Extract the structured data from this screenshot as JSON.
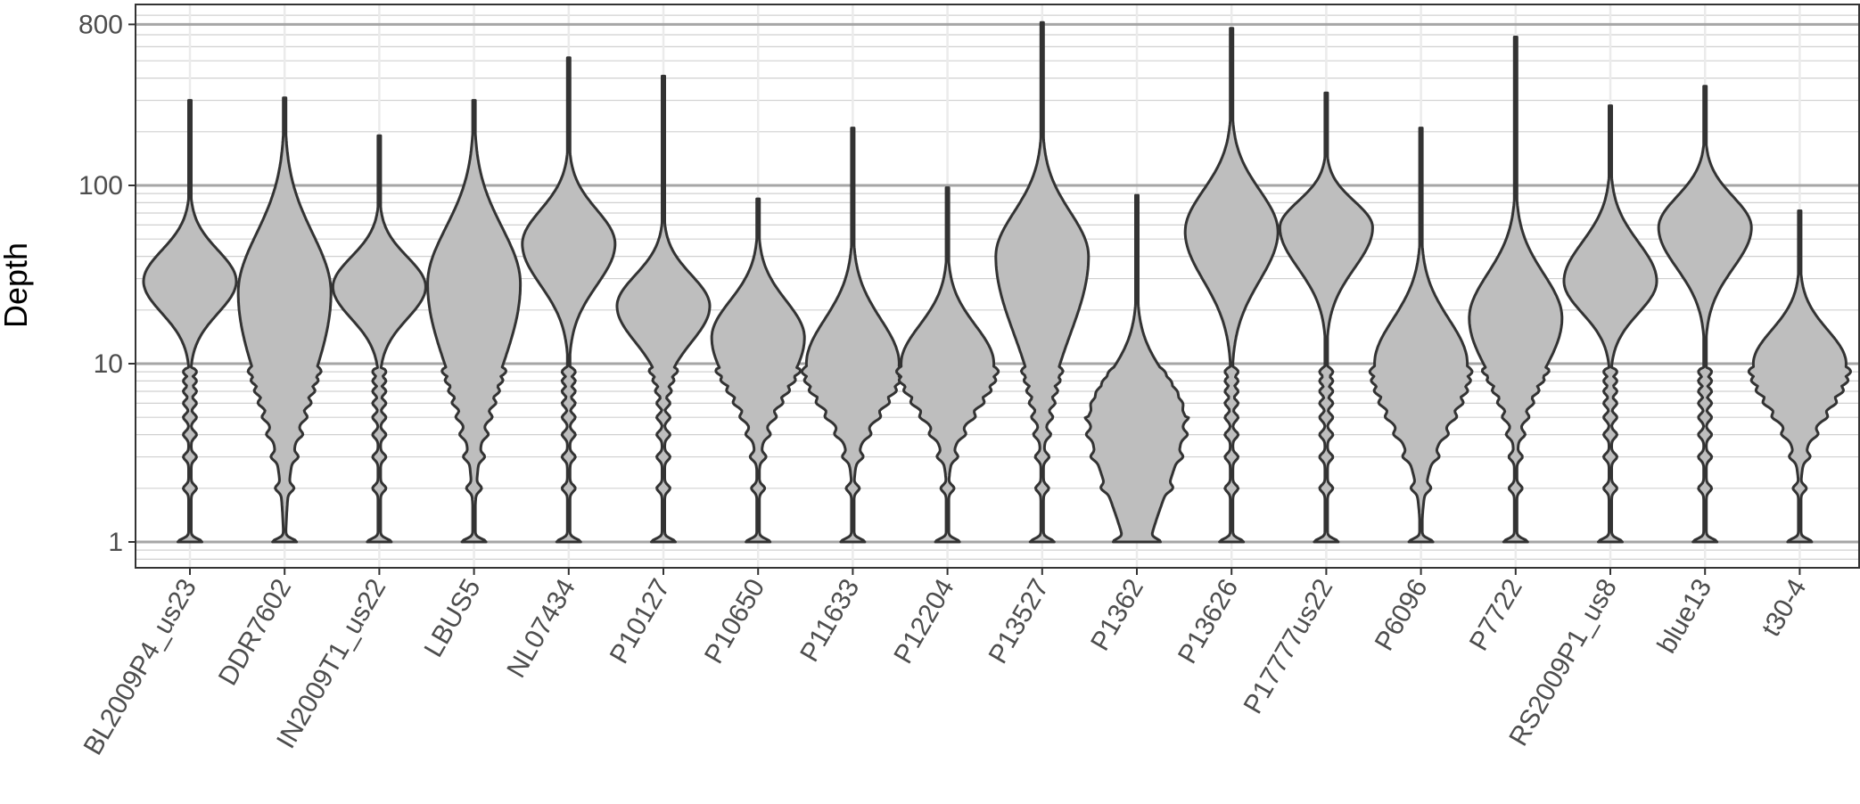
{
  "chart_data": {
    "type": "violin",
    "title": "",
    "xlabel": "",
    "ylabel": "Depth",
    "yscale": "log10",
    "ylim": [
      0.8,
      1000
    ],
    "yticks": [
      1,
      10,
      100,
      800
    ],
    "grid": true,
    "colors": {
      "fill": "#bebebe",
      "stroke": "#333333",
      "grid_major": "#a6a6a6",
      "grid_minor": "#d0d0d0",
      "grid_x": "#ebebeb",
      "panel_border": "#333333"
    },
    "categories": [
      "BL2009P4_us23",
      "DDR7602",
      "IN2009T1_us22",
      "LBUS5",
      "NL07434",
      "P10127",
      "P10650",
      "P11633",
      "P12204",
      "P13527",
      "P1362",
      "P13626",
      "P17777us22",
      "P6096",
      "P7722",
      "RS2009P1_us8",
      "blue13",
      "t30-4"
    ],
    "violins": [
      {
        "max": 300,
        "peak": 29,
        "low": 15,
        "high": 55
      },
      {
        "max": 310,
        "peak": 25,
        "low": 4,
        "high": 85
      },
      {
        "max": 190,
        "peak": 27,
        "low": 14,
        "high": 50
      },
      {
        "max": 300,
        "peak": 28,
        "low": 5,
        "high": 90
      },
      {
        "max": 520,
        "peak": 47,
        "low": 20,
        "high": 95
      },
      {
        "max": 410,
        "peak": 21,
        "low": 10,
        "high": 40
      },
      {
        "max": 84,
        "peak": 14,
        "low": 5,
        "high": 30
      },
      {
        "max": 210,
        "peak": 10,
        "low": 4,
        "high": 25
      },
      {
        "max": 97,
        "peak": 10,
        "low": 4,
        "high": 22
      },
      {
        "max": 820,
        "peak": 40,
        "low": 8,
        "high": 100
      },
      {
        "max": 88,
        "peak": 5,
        "low": 1,
        "high": 12
      },
      {
        "max": 760,
        "peak": 55,
        "low": 20,
        "high": 130
      },
      {
        "max": 330,
        "peak": 58,
        "low": 25,
        "high": 100
      },
      {
        "max": 210,
        "peak": 10,
        "low": 3,
        "high": 25
      },
      {
        "max": 680,
        "peak": 18,
        "low": 6,
        "high": 45
      },
      {
        "max": 280,
        "peak": 29,
        "low": 15,
        "high": 65
      },
      {
        "max": 360,
        "peak": 58,
        "low": 25,
        "high": 110
      },
      {
        "max": 72,
        "peak": 10,
        "low": 4,
        "high": 20
      }
    ]
  }
}
